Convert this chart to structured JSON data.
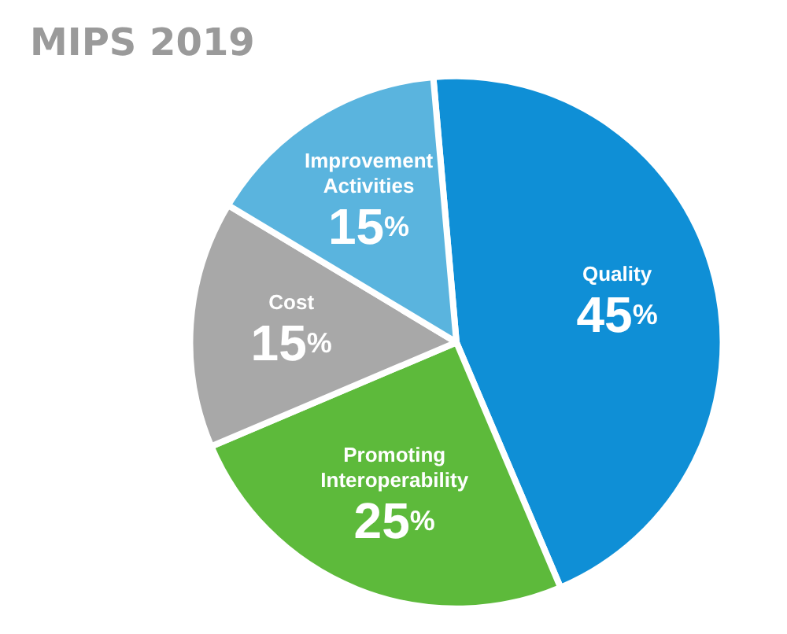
{
  "chart_data": {
    "type": "pie",
    "title": "MIPS 2019",
    "categories": [
      "Quality",
      "Promoting Interoperability",
      "Cost",
      "Improvement Activities"
    ],
    "values": [
      45,
      25,
      15,
      15
    ],
    "colors": [
      "#0f8fd6",
      "#5dba3b",
      "#a8a8a8",
      "#5ab4de"
    ],
    "value_labels": [
      "45%",
      "25%",
      "15%",
      "15%"
    ],
    "legend": false
  }
}
